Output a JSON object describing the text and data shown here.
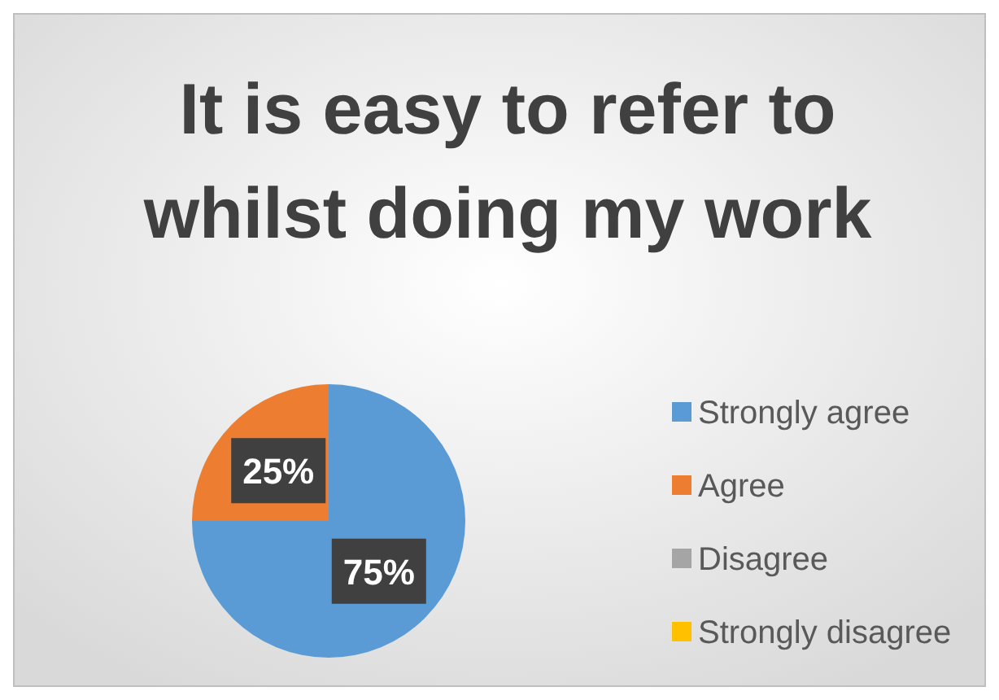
{
  "chart_data": {
    "type": "pie",
    "title": "It is easy to refer to whilst doing my work",
    "categories": [
      "Strongly agree",
      "Agree",
      "Disagree",
      "Strongly disagree"
    ],
    "values": [
      75,
      25,
      0,
      0
    ],
    "colors": [
      "#5b9bd5",
      "#ed7d31",
      "#a5a5a5",
      "#ffc000"
    ],
    "value_labels": [
      "75%",
      "25%",
      null,
      null
    ],
    "legend": "right"
  }
}
